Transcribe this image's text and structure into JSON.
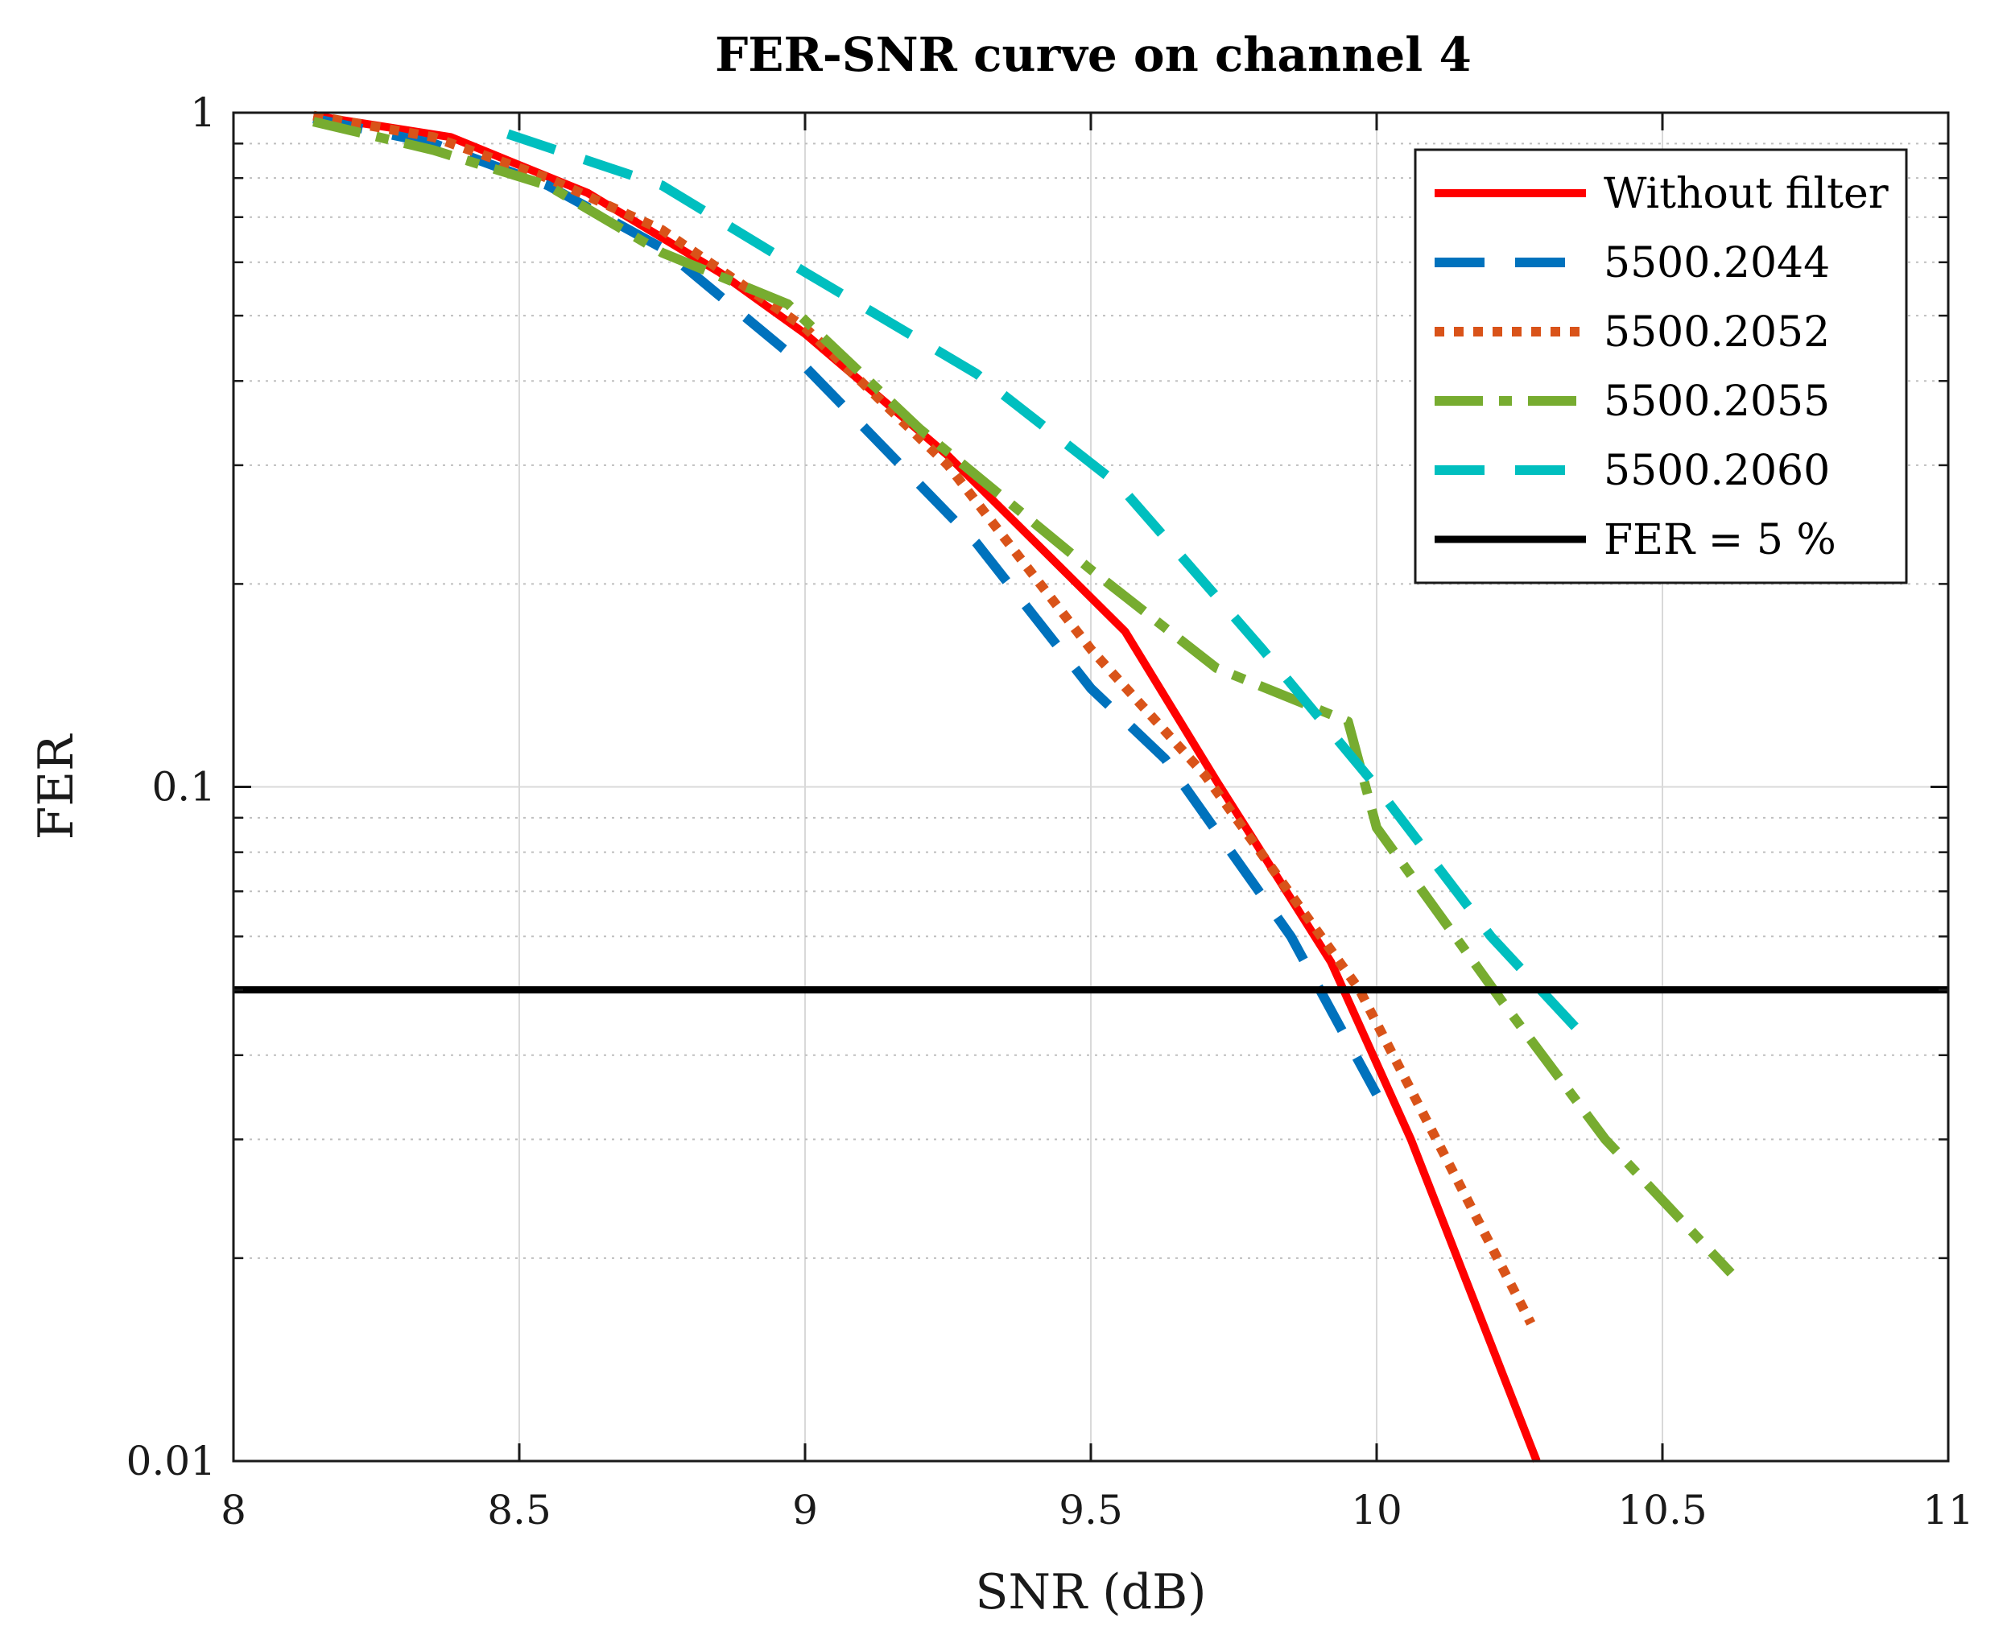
{
  "chart_data": {
    "type": "line",
    "title": "FER-SNR curve on channel 4",
    "xlabel": "SNR (dB)",
    "ylabel": "FER",
    "xlim": [
      8,
      11
    ],
    "ylim": [
      0.01,
      1
    ],
    "yscale": "log",
    "grid": true,
    "legend_position": "top-right",
    "x_ticks": [
      8,
      8.5,
      9,
      9.5,
      10,
      10.5,
      11
    ],
    "x_tick_labels": [
      "8",
      "8.5",
      "9",
      "9.5",
      "10",
      "10.5",
      "11"
    ],
    "y_ticks": [
      0.01,
      0.1,
      1
    ],
    "y_tick_labels": [
      "0.01",
      "0.1",
      "1"
    ],
    "series": [
      {
        "name": "Without filter",
        "color": "#ff0000",
        "style": "solid",
        "x": [
          8.14,
          8.38,
          8.62,
          8.85,
          9.0,
          9.25,
          9.56,
          9.72,
          9.92,
          10.06,
          10.28
        ],
        "y": [
          0.99,
          0.92,
          0.76,
          0.58,
          0.47,
          0.31,
          0.17,
          0.102,
          0.055,
          0.03,
          0.01
        ]
      },
      {
        "name": "5500.2044",
        "color": "#0072bd",
        "style": "dashed",
        "x": [
          8.14,
          8.35,
          8.55,
          8.75,
          9.0,
          9.3,
          9.5,
          9.63,
          9.85,
          10.0
        ],
        "y": [
          0.98,
          0.9,
          0.78,
          0.63,
          0.42,
          0.23,
          0.14,
          0.11,
          0.06,
          0.035
        ]
      },
      {
        "name": "5500.2052",
        "color": "#d95319",
        "style": "dotted",
        "x": [
          8.14,
          8.35,
          8.55,
          8.75,
          9.0,
          9.25,
          9.5,
          9.7,
          9.97,
          10.27
        ],
        "y": [
          0.99,
          0.92,
          0.8,
          0.67,
          0.48,
          0.3,
          0.16,
          0.104,
          0.05,
          0.016
        ]
      },
      {
        "name": "5500.2055",
        "color": "#77ac30",
        "style": "dashdot",
        "x": [
          8.14,
          8.35,
          8.55,
          8.75,
          8.97,
          9.2,
          9.5,
          9.72,
          9.95,
          10.0,
          10.22,
          10.4,
          10.62
        ],
        "y": [
          0.97,
          0.88,
          0.78,
          0.62,
          0.52,
          0.34,
          0.21,
          0.15,
          0.125,
          0.087,
          0.048,
          0.03,
          0.019
        ]
      },
      {
        "name": "5500.2060",
        "color": "#00bfbf",
        "style": "dashed",
        "x": [
          8.48,
          8.75,
          9.0,
          9.3,
          9.55,
          9.8,
          10.0,
          10.2,
          10.37
        ],
        "y": [
          0.93,
          0.78,
          0.58,
          0.41,
          0.28,
          0.16,
          0.1,
          0.06,
          0.042
        ]
      },
      {
        "name": "FER = 5 %",
        "color": "#000000",
        "style": "solid",
        "x": [
          8,
          11
        ],
        "y": [
          0.05,
          0.05
        ]
      }
    ]
  }
}
